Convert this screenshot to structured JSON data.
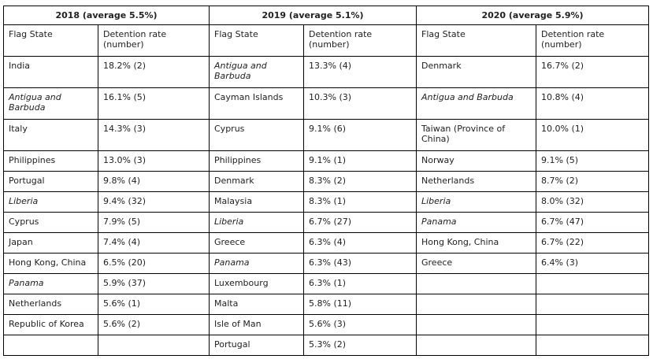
{
  "header": {
    "col_flag": "Flag State",
    "col_rate": "Detention rate (number)"
  },
  "years": [
    {
      "title": "2018 (average 5.5%)",
      "rows": [
        {
          "flag": "India",
          "rate": "18.2% (2)",
          "style": "normal"
        },
        {
          "flag": "Antigua and Barbuda",
          "rate": "16.1% (5)",
          "style": "italic"
        },
        {
          "flag": "Italy",
          "rate": "14.3% (3)",
          "style": "normal"
        },
        {
          "flag": "Philippines",
          "rate": "13.0% (3)",
          "style": "bold"
        },
        {
          "flag": "Portugal",
          "rate": "9.8% (4)",
          "style": "bold"
        },
        {
          "flag": "Liberia",
          "rate": "9.4% (32)",
          "style": "italic"
        },
        {
          "flag": "Cyprus",
          "rate": "7.9% (5)",
          "style": "bold"
        },
        {
          "flag": "Japan",
          "rate": "7.4% (4)",
          "style": "normal"
        },
        {
          "flag": "Hong Kong, China",
          "rate": "6.5% (20)",
          "style": "bold"
        },
        {
          "flag": "Panama",
          "rate": "5.9% (37)",
          "style": "italic"
        },
        {
          "flag": "Netherlands",
          "rate": "5.6% (1)",
          "style": "bold"
        },
        {
          "flag": "Republic of Korea",
          "rate": "5.6% (2)",
          "style": "normal"
        },
        {
          "flag": "",
          "rate": "",
          "style": "normal"
        }
      ]
    },
    {
      "title": "2019 (average 5.1%)",
      "rows": [
        {
          "flag": "Antigua and Barbuda",
          "rate": "13.3% (4)",
          "style": "italic"
        },
        {
          "flag": "Cayman Islands",
          "rate": "10.3% (3)",
          "style": "normal"
        },
        {
          "flag": "Cyprus",
          "rate": "9.1% (6)",
          "style": "bold"
        },
        {
          "flag": "Philippines",
          "rate": "9.1% (1)",
          "style": "bold"
        },
        {
          "flag": "Denmark",
          "rate": "8.3% (2)",
          "style": "bold"
        },
        {
          "flag": "Malaysia",
          "rate": "8.3% (1)",
          "style": "normal"
        },
        {
          "flag": "Liberia",
          "rate": "6.7% (27)",
          "style": "italic"
        },
        {
          "flag": "Greece",
          "rate": "6.3% (4)",
          "style": "normal"
        },
        {
          "flag": "Panama",
          "rate": "6.3% (43)",
          "style": "italic"
        },
        {
          "flag": "Luxembourg",
          "rate": "6.3% (1)",
          "style": "normal"
        },
        {
          "flag": "Malta",
          "rate": "5.8% (11)",
          "style": "normal"
        },
        {
          "flag": "Isle of Man",
          "rate": "5.6% (3)",
          "style": "normal"
        },
        {
          "flag": "Portugal",
          "rate": "5.3% (2)",
          "style": "bold"
        }
      ]
    },
    {
      "title": "2020 (average 5.9%)",
      "rows": [
        {
          "flag": "Denmark",
          "rate": "16.7% (2)",
          "style": "bold"
        },
        {
          "flag": "Antigua and Barbuda",
          "rate": "10.8% (4)",
          "style": "italic"
        },
        {
          "flag": "Taiwan (Province of China)",
          "rate": "10.0% (1)",
          "style": "normal"
        },
        {
          "flag": "Norway",
          "rate": "9.1% (5)",
          "style": "normal"
        },
        {
          "flag": "Netherlands",
          "rate": "8.7% (2)",
          "style": "bold"
        },
        {
          "flag": "Liberia",
          "rate": "8.0% (32)",
          "style": "italic"
        },
        {
          "flag": "Panama",
          "rate": "6.7% (47)",
          "style": "italic"
        },
        {
          "flag": "Hong Kong, China",
          "rate": "6.7% (22)",
          "style": "bold"
        },
        {
          "flag": "Greece",
          "rate": "6.4% (3)",
          "style": "bold"
        },
        {
          "flag": "",
          "rate": "",
          "style": "normal"
        },
        {
          "flag": "",
          "rate": "",
          "style": "normal"
        },
        {
          "flag": "",
          "rate": "",
          "style": "normal"
        },
        {
          "flag": "",
          "rate": "",
          "style": "normal"
        }
      ]
    }
  ]
}
